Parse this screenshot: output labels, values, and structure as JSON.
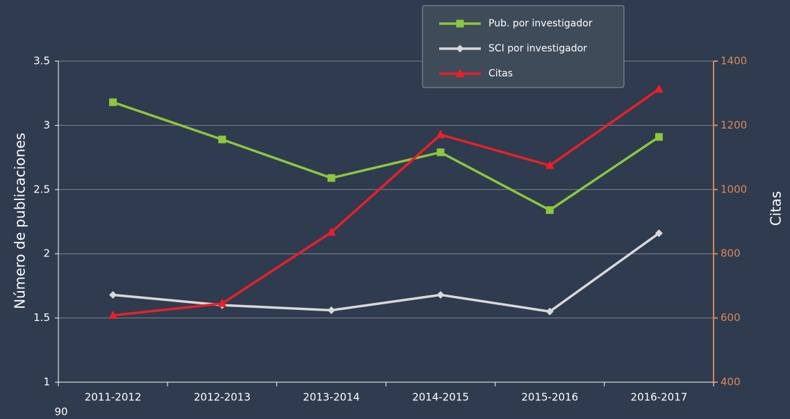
{
  "chart_data": {
    "type": "line",
    "y_label": "Número de publicaciones",
    "y2_label": "Citas",
    "categories": [
      "2011-2012",
      "2012-2013",
      "2013-2014",
      "2014-2015",
      "2015-2016",
      "2016-2017"
    ],
    "series": [
      {
        "name": "Pub. por investigador",
        "color": "#8dc63f",
        "marker": "square",
        "values": [
          3.18,
          2.89,
          2.59,
          2.79,
          2.34,
          2.91
        ]
      },
      {
        "name": "SCI por investigador",
        "color": "#d9d9d9",
        "marker": "diamond",
        "values": [
          1.68,
          1.6,
          1.56,
          1.68,
          1.55,
          2.16
        ]
      },
      {
        "name": "Citas",
        "color": "#e8202a",
        "marker": "triangle",
        "axis": "y2",
        "values": [
          608,
          645,
          867,
          1171,
          1075,
          1313
        ]
      }
    ],
    "ylim": [
      1,
      3.5
    ],
    "yticks": [
      1,
      1.5,
      2,
      2.5,
      3,
      3.5
    ],
    "y2lim": [
      400,
      1400
    ],
    "y2ticks": [
      400,
      600,
      800,
      1000,
      1200,
      1400
    ],
    "y2_color": "#d9875a",
    "grid": true,
    "legend": "top-right"
  },
  "footer": "90"
}
